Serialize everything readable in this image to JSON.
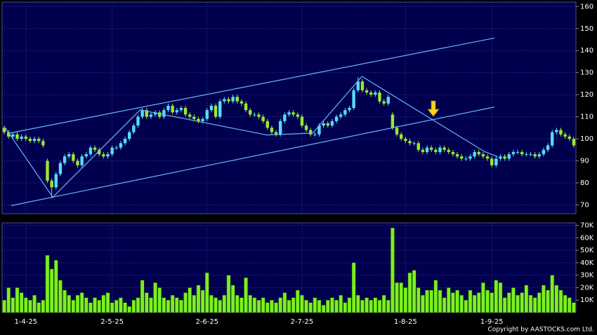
{
  "chart_data": [
    {
      "type": "candlestick",
      "categories": [
        null,
        null,
        null,
        null,
        null,
        "1-4-25",
        null,
        null,
        null,
        null,
        null,
        null,
        null,
        null,
        null,
        null,
        null,
        null,
        null,
        null,
        null,
        null,
        null,
        null,
        null,
        "2-5-25",
        null,
        null,
        null,
        null,
        null,
        null,
        null,
        null,
        null,
        null,
        null,
        null,
        null,
        null,
        null,
        null,
        null,
        null,
        null,
        null,
        null,
        "2-6-25",
        null,
        null,
        null,
        null,
        null,
        null,
        null,
        null,
        null,
        null,
        null,
        null,
        null,
        null,
        null,
        null,
        null,
        null,
        null,
        null,
        null,
        "2-7-25",
        null,
        null,
        null,
        null,
        null,
        null,
        null,
        null,
        null,
        null,
        null,
        null,
        null,
        null,
        null,
        null,
        null,
        null,
        null,
        null,
        null,
        null,
        null,
        "1-8-25",
        null,
        null,
        null,
        null,
        null,
        null,
        null,
        null,
        null,
        null,
        null,
        null,
        null,
        null,
        null,
        null,
        null,
        null,
        null,
        "1-9-25",
        null,
        null,
        null,
        null,
        null,
        null,
        null,
        null,
        null,
        null,
        null,
        null,
        null,
        null,
        null,
        null,
        null,
        null,
        null
      ],
      "open": [
        105,
        103,
        101,
        102,
        100,
        101,
        100,
        99,
        100,
        99,
        90,
        81,
        78,
        84,
        89,
        92,
        93,
        90,
        88,
        92,
        93,
        96,
        95,
        93,
        92,
        93,
        96,
        96,
        98,
        100,
        103,
        106,
        110,
        113,
        110,
        111,
        112,
        110,
        113,
        115,
        112,
        113,
        114,
        111,
        110,
        109,
        108,
        109,
        113,
        115,
        110,
        117,
        118,
        117,
        119,
        117,
        116,
        113,
        111,
        111,
        110,
        108,
        105,
        103,
        102,
        108,
        111,
        112,
        111,
        110,
        106,
        104,
        102,
        102,
        106,
        107,
        106,
        108,
        110,
        111,
        113,
        114,
        122,
        126,
        122,
        121,
        120,
        121,
        117,
        116,
        111,
        105,
        102,
        100,
        99,
        98,
        98,
        95,
        94,
        96,
        95,
        94,
        96,
        95,
        94,
        93,
        92,
        91,
        91,
        92,
        94,
        93,
        92,
        91,
        88,
        91,
        92,
        91,
        93,
        94,
        94,
        93,
        93,
        93,
        92,
        93,
        95,
        97,
        103,
        104,
        102,
        101,
        100
      ],
      "high": [
        106,
        104,
        103,
        103,
        102,
        102,
        101,
        101,
        101,
        100,
        91,
        82,
        85,
        90,
        93,
        94,
        94,
        91,
        93,
        94,
        97,
        97,
        96,
        94,
        94,
        97,
        97,
        99,
        101,
        104,
        107,
        111,
        114,
        114,
        112,
        113,
        113,
        114,
        116,
        116,
        114,
        115,
        115,
        112,
        111,
        110,
        110,
        114,
        116,
        116,
        118,
        119,
        119,
        120,
        120,
        118,
        117,
        114,
        112,
        112,
        111,
        109,
        106,
        104,
        109,
        112,
        113,
        113,
        112,
        111,
        107,
        105,
        103,
        107,
        108,
        108,
        109,
        111,
        112,
        114,
        115,
        123,
        128,
        127,
        123,
        122,
        122,
        122,
        118,
        120,
        112,
        106,
        103,
        101,
        100,
        99,
        99,
        96,
        97,
        97,
        96,
        97,
        97,
        96,
        95,
        94,
        93,
        92,
        93,
        95,
        95,
        94,
        93,
        92,
        92,
        93,
        93,
        94,
        95,
        95,
        95,
        94,
        94,
        94,
        94,
        96,
        98,
        104,
        105,
        105,
        103,
        102,
        101
      ],
      "low": [
        102,
        100,
        100,
        99,
        99,
        99,
        98,
        98,
        98,
        96,
        80,
        73,
        77,
        83,
        88,
        91,
        89,
        87,
        87,
        91,
        92,
        94,
        92,
        91,
        91,
        92,
        95,
        95,
        97,
        99,
        102,
        105,
        109,
        109,
        109,
        110,
        109,
        109,
        112,
        111,
        111,
        112,
        110,
        109,
        108,
        107,
        107,
        108,
        112,
        109,
        109,
        116,
        116,
        116,
        116,
        115,
        112,
        110,
        110,
        109,
        107,
        104,
        102,
        101,
        101,
        107,
        110,
        110,
        109,
        105,
        103,
        101,
        101,
        101,
        105,
        105,
        105,
        107,
        109,
        110,
        112,
        113,
        121,
        121,
        120,
        119,
        119,
        116,
        115,
        115,
        104,
        101,
        99,
        98,
        97,
        97,
        94,
        93,
        93,
        94,
        93,
        93,
        94,
        93,
        92,
        91,
        90,
        90,
        90,
        91,
        92,
        91,
        90,
        87,
        87,
        90,
        90,
        90,
        92,
        93,
        92,
        92,
        92,
        91,
        91,
        92,
        94,
        96,
        102,
        101,
        100,
        99,
        96
      ],
      "close": [
        103,
        101,
        102,
        100,
        101,
        100,
        99,
        100,
        99,
        97,
        81,
        78,
        84,
        89,
        92,
        93,
        90,
        88,
        92,
        93,
        96,
        95,
        93,
        92,
        93,
        96,
        96,
        98,
        100,
        103,
        106,
        110,
        113,
        110,
        111,
        112,
        110,
        113,
        115,
        112,
        113,
        114,
        111,
        110,
        109,
        108,
        109,
        113,
        115,
        110,
        117,
        118,
        117,
        119,
        117,
        116,
        113,
        111,
        111,
        110,
        108,
        105,
        103,
        102,
        108,
        111,
        112,
        111,
        110,
        106,
        104,
        102,
        102,
        106,
        107,
        106,
        108,
        110,
        111,
        113,
        114,
        122,
        126,
        122,
        121,
        120,
        121,
        117,
        116,
        119,
        105,
        102,
        100,
        99,
        98,
        98,
        95,
        94,
        96,
        95,
        94,
        96,
        95,
        94,
        93,
        92,
        91,
        91,
        92,
        94,
        93,
        92,
        91,
        88,
        91,
        92,
        91,
        93,
        94,
        94,
        93,
        93,
        93,
        92,
        93,
        95,
        97,
        103,
        104,
        102,
        101,
        100,
        97
      ],
      "up_color": "#55dcff",
      "down_color": "#9be830",
      "ylim": [
        66,
        162
      ],
      "yticks": [
        70,
        80,
        90,
        100,
        110,
        120,
        130,
        140,
        150,
        160
      ],
      "grid": true,
      "trendlines": [
        {
          "color": "#6ab4ff",
          "x": [
            1.3,
            113.6
          ],
          "y": [
            102.6,
            145.7
          ]
        },
        {
          "color": "#6ab4ff",
          "x": [
            1.6,
            113.6
          ],
          "y": [
            69.7,
            114.4
          ]
        },
        {
          "color": "#6ab4ff",
          "x": [
            0.15,
            11.25,
            31.5,
            60.9,
            71.5,
            82.9,
            99.2,
            111.4,
            114.4
          ],
          "y": [
            105.2,
            73.5,
            113.1,
            101.7,
            102.6,
            128.3,
            108.7,
            94.1,
            91.9
          ]
        }
      ]
    },
    {
      "type": "bar",
      "values": [
        10000,
        20000,
        12000,
        20000,
        16000,
        12000,
        10000,
        14000,
        8000,
        10000,
        46000,
        35000,
        42000,
        26000,
        18000,
        14000,
        10000,
        14000,
        16000,
        12000,
        8000,
        12000,
        10000,
        14000,
        16000,
        8000,
        10000,
        12000,
        8000,
        5000,
        10000,
        12000,
        26000,
        16000,
        12000,
        24000,
        20000,
        12000,
        10000,
        14000,
        12000,
        10000,
        16000,
        20000,
        14000,
        22000,
        18000,
        32000,
        14000,
        12000,
        10000,
        14000,
        30000,
        22000,
        14000,
        12000,
        28000,
        14000,
        12000,
        10000,
        12000,
        8000,
        10000,
        8000,
        12000,
        16000,
        10000,
        12000,
        18000,
        14000,
        10000,
        8000,
        12000,
        10000,
        6000,
        10000,
        12000,
        10000,
        14000,
        8000,
        12000,
        40000,
        14000,
        10000,
        12000,
        10000,
        12000,
        10000,
        14000,
        10000,
        68000,
        24000,
        24000,
        20000,
        32000,
        34000,
        20000,
        14000,
        18000,
        18000,
        26000,
        18000,
        12000,
        20000,
        16000,
        18000,
        14000,
        10000,
        18000,
        14000,
        16000,
        24000,
        18000,
        16000,
        26000,
        24000,
        12000,
        16000,
        20000,
        14000,
        16000,
        22000,
        14000,
        12000,
        16000,
        22000,
        18000,
        30000,
        22000,
        18000,
        14000,
        12000,
        8000
      ],
      "color": "#7cf020",
      "ylim": [
        0,
        72000
      ],
      "yticks": [
        {
          "value": 10000,
          "label": "10K"
        },
        {
          "value": 20000,
          "label": "20K"
        },
        {
          "value": 30000,
          "label": "30K"
        },
        {
          "value": 40000,
          "label": "40K"
        },
        {
          "value": 50000,
          "label": "50K"
        },
        {
          "value": 60000,
          "label": "60K"
        },
        {
          "value": 70000,
          "label": "70K"
        }
      ],
      "grid": true
    }
  ],
  "copyright": "Copyright by AASTOCKS.com Ltd."
}
